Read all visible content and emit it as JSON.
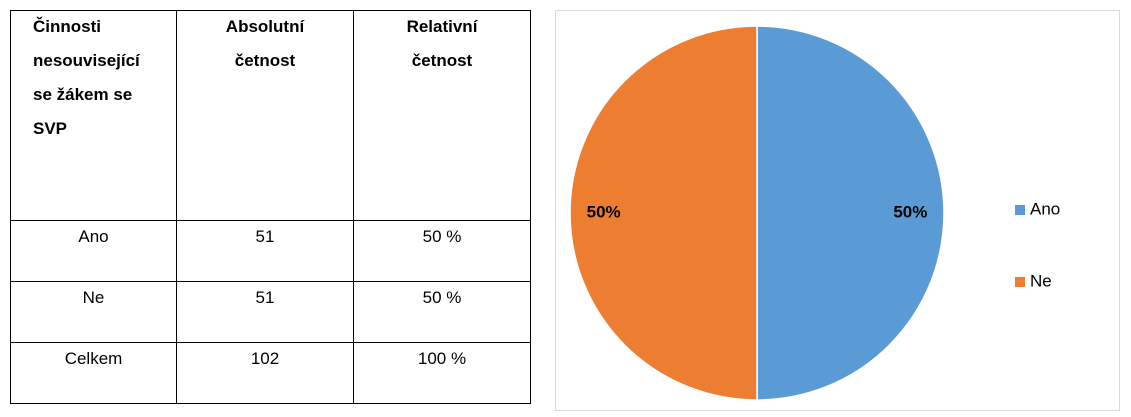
{
  "table": {
    "header": [
      [
        "Činnosti",
        "nesouvisející",
        "se žákem se",
        "SVP"
      ],
      [
        "Absolutní",
        "četnost"
      ],
      [
        "Relativní",
        "četnost"
      ]
    ],
    "rows": [
      [
        "Ano",
        "51",
        "50 %"
      ],
      [
        "Ne",
        "51",
        "50 %"
      ],
      [
        "Celkem",
        "102",
        "100 %"
      ]
    ]
  },
  "chart_data": {
    "type": "pie",
    "categories": [
      "Ano",
      "Ne"
    ],
    "values": [
      50,
      50
    ],
    "value_labels": [
      "50%",
      "50%"
    ],
    "colors": [
      "#5B9BD5",
      "#ED7D31"
    ],
    "legend": "right"
  }
}
